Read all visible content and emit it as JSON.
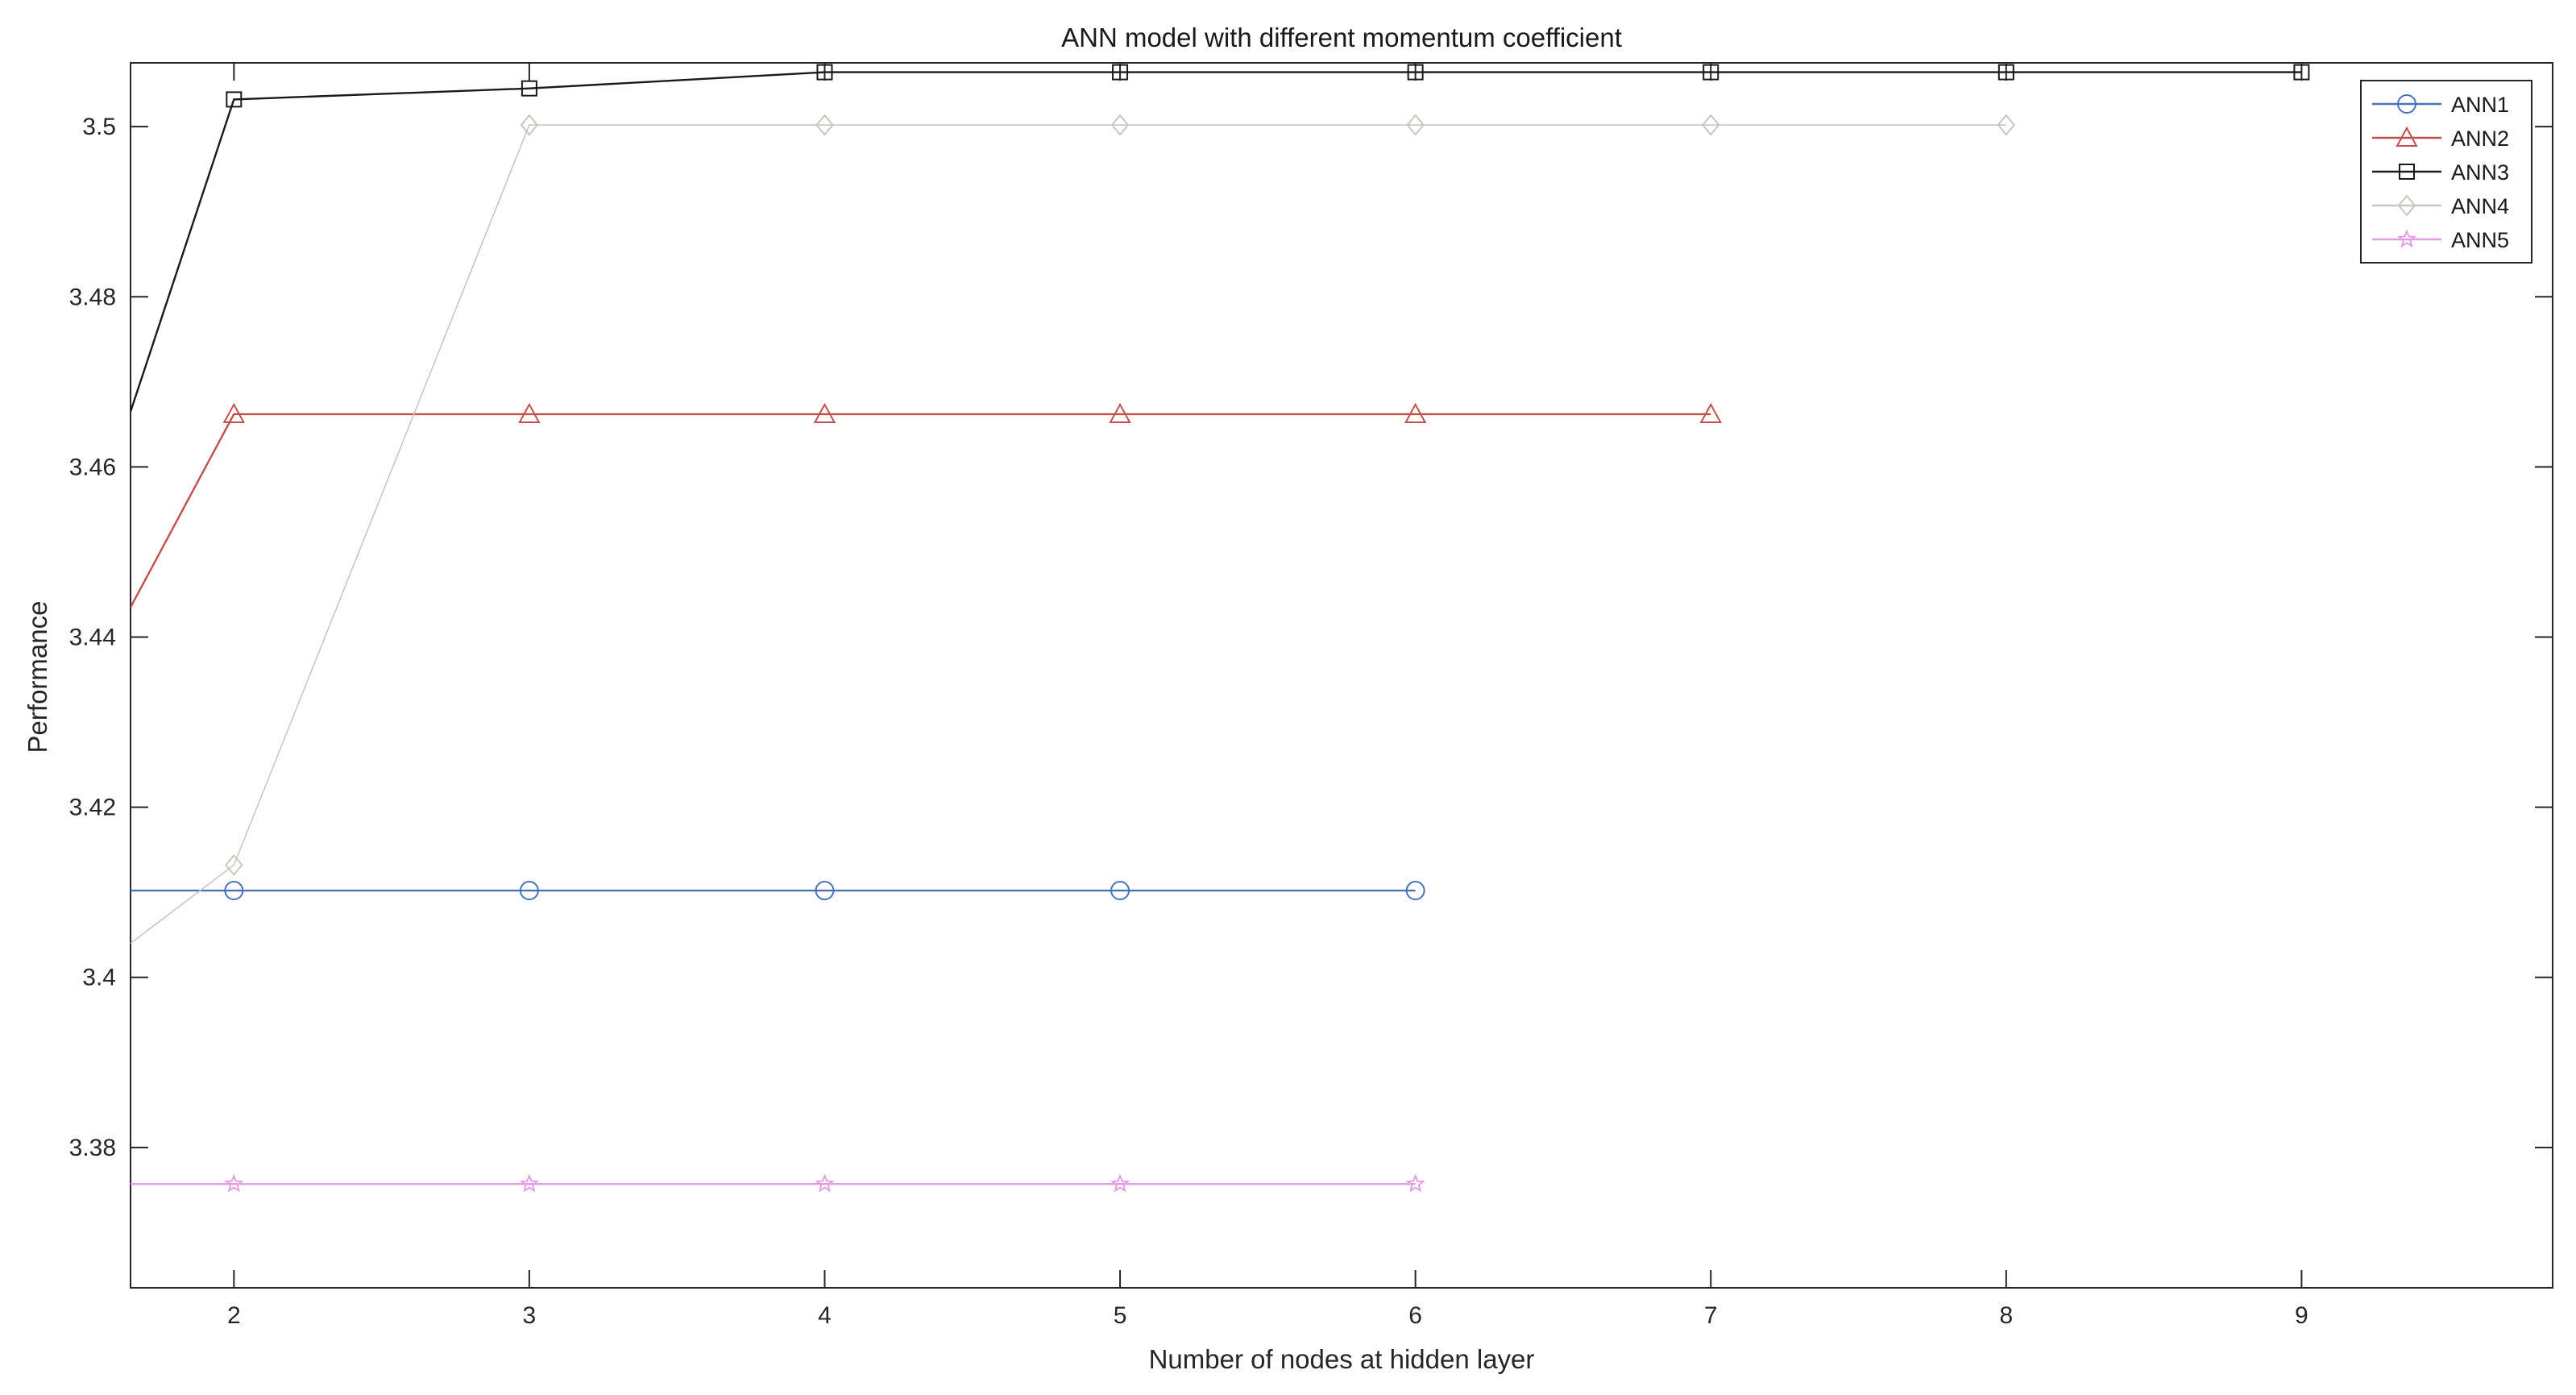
{
  "chart_data": {
    "type": "line",
    "title": "ANN model with different momentum coefficient",
    "xlabel": "Number of nodes at hidden layer",
    "ylabel": "Performance",
    "xlim": [
      1.65,
      9.85
    ],
    "ylim": [
      3.3635,
      3.5075
    ],
    "xticks": [
      2,
      3,
      4,
      5,
      6,
      7,
      8,
      9
    ],
    "yticks": [
      3.38,
      3.4,
      3.42,
      3.44,
      3.46,
      3.48,
      3.5
    ],
    "ytick_labels": [
      "3.38",
      "3.4",
      "3.42",
      "3.44",
      "3.46",
      "3.48",
      "3.5"
    ],
    "grid": false,
    "legend_position": "top-right",
    "series": [
      {
        "name": "ANN1",
        "color": "#4a72b8",
        "marker": "circle",
        "x": [
          1.65,
          2,
          3,
          4,
          5,
          6
        ],
        "y": [
          3.4102,
          3.4102,
          3.4102,
          3.4102,
          3.4102,
          3.4102
        ],
        "markers_at": [
          2,
          3,
          4,
          5,
          6
        ]
      },
      {
        "name": "ANN2",
        "color": "#c0504d",
        "marker": "triangle",
        "x": [
          1.65,
          2,
          3,
          4,
          5,
          6,
          7
        ],
        "y": [
          3.4435,
          3.4662,
          3.4662,
          3.4662,
          3.4662,
          3.4662,
          3.4662
        ],
        "markers_at": [
          2,
          3,
          4,
          5,
          6,
          7
        ]
      },
      {
        "name": "ANN3",
        "color": "#1a1a1a",
        "marker": "square",
        "x": [
          1.65,
          2,
          3,
          4,
          5,
          6,
          7,
          8,
          9
        ],
        "y": [
          3.4665,
          3.5032,
          3.5045,
          3.5064,
          3.5064,
          3.5064,
          3.5064,
          3.5064,
          3.5064
        ],
        "markers_at": [
          2,
          3,
          4,
          5,
          6,
          7,
          8,
          9
        ]
      },
      {
        "name": "ANN4",
        "color": "#c8c8c0",
        "marker": "diamond",
        "x": [
          1.65,
          2,
          3,
          4,
          5,
          6,
          7,
          8
        ],
        "y": [
          3.404,
          3.4132,
          3.5002,
          3.5002,
          3.5002,
          3.5002,
          3.5002,
          3.5002
        ],
        "markers_at": [
          2,
          3,
          4,
          5,
          6,
          7,
          8
        ]
      },
      {
        "name": "ANN5",
        "color": "#e39ee3",
        "marker": "star",
        "x": [
          1.65,
          2,
          3,
          4,
          5,
          6
        ],
        "y": [
          3.3757,
          3.3757,
          3.3757,
          3.3757,
          3.3757,
          3.3757
        ],
        "markers_at": [
          2,
          3,
          4,
          5,
          6
        ]
      }
    ]
  }
}
